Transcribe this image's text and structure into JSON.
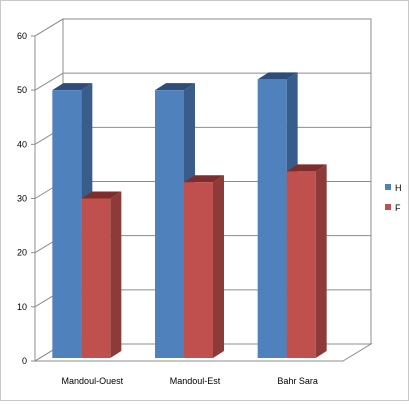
{
  "chart_data": {
    "type": "bar",
    "style": "3d-clustered-column",
    "categories": [
      "Mandoul-Ouest",
      "Mandoul-Est",
      "Bahr Sara"
    ],
    "series": [
      {
        "name": "H",
        "values": [
          50,
          50,
          52
        ],
        "color": "#4F81BD",
        "side_color": "#385D8A",
        "top_color": "#2E4E79"
      },
      {
        "name": "F",
        "values": [
          30,
          33,
          35
        ],
        "color": "#C0504D",
        "side_color": "#8C3B39",
        "top_color": "#7D2E2C"
      }
    ],
    "ylim": [
      0,
      60
    ],
    "yticks": [
      0,
      10,
      20,
      30,
      40,
      50,
      60
    ],
    "grid": true,
    "legend_position": "right",
    "title": "",
    "xlabel": "",
    "ylabel": ""
  }
}
